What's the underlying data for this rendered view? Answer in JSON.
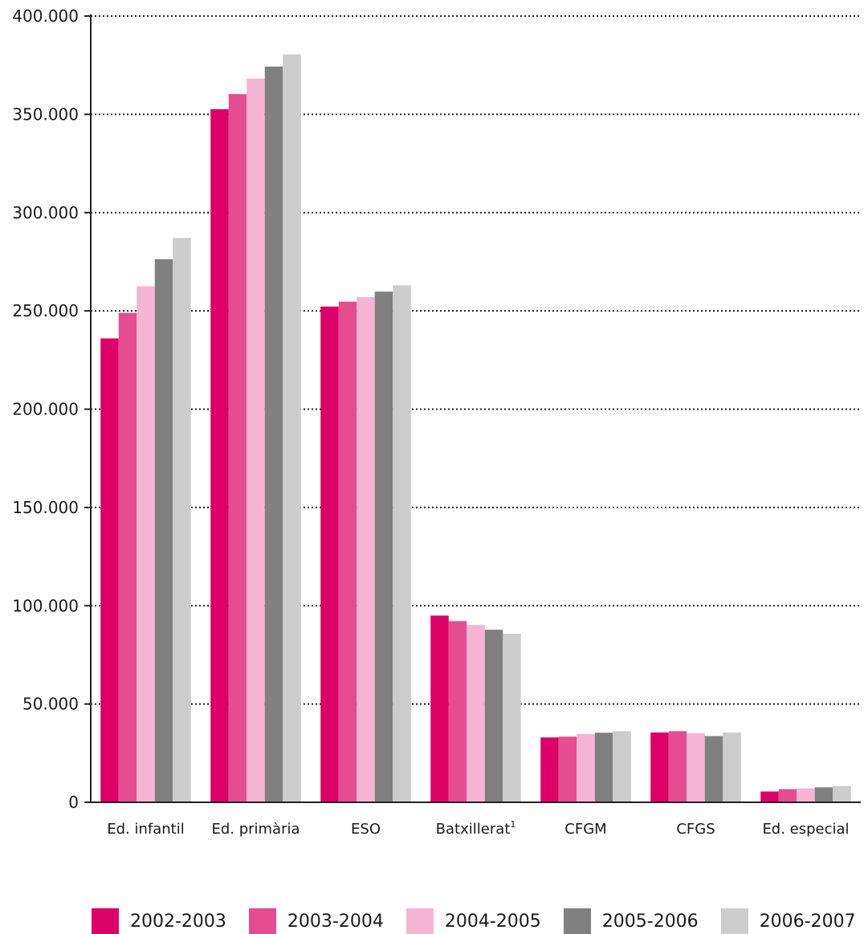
{
  "chart_data": {
    "type": "bar",
    "categories": [
      "Ed. infantil",
      "Ed. primària",
      "ESO",
      "Batxillerat",
      "CFGM",
      "CFGS",
      "Ed. especial"
    ],
    "category_superscripts": [
      "",
      "",
      "",
      "1",
      "",
      "",
      ""
    ],
    "series": [
      {
        "name": "2002-2003",
        "color": "#dc0067",
        "values": [
          236000,
          352600,
          252200,
          95000,
          33000,
          35500,
          5500
        ]
      },
      {
        "name": "2003-2004",
        "color": "#e64d91",
        "values": [
          249000,
          360300,
          254700,
          92200,
          33400,
          36200,
          6700
        ]
      },
      {
        "name": "2004-2005",
        "color": "#f5b5d2",
        "values": [
          262500,
          368200,
          257000,
          90200,
          34700,
          35200,
          7100
        ]
      },
      {
        "name": "2005-2006",
        "color": "#808080",
        "values": [
          276300,
          374300,
          259800,
          87800,
          35400,
          33700,
          7600
        ]
      },
      {
        "name": "2006-2007",
        "color": "#cccccc",
        "values": [
          287100,
          380500,
          263000,
          85800,
          36200,
          35500,
          8300
        ]
      }
    ],
    "ylim": [
      0,
      400000
    ],
    "yticks": [
      0,
      50000,
      100000,
      150000,
      200000,
      250000,
      300000,
      350000,
      400000
    ],
    "ytick_labels": [
      "0",
      "50.000",
      "100.000",
      "150.000",
      "200.000",
      "250.000",
      "300.000",
      "350.000",
      "400.000"
    ],
    "grid": "horizontal-dotted",
    "legend": "bottom"
  }
}
